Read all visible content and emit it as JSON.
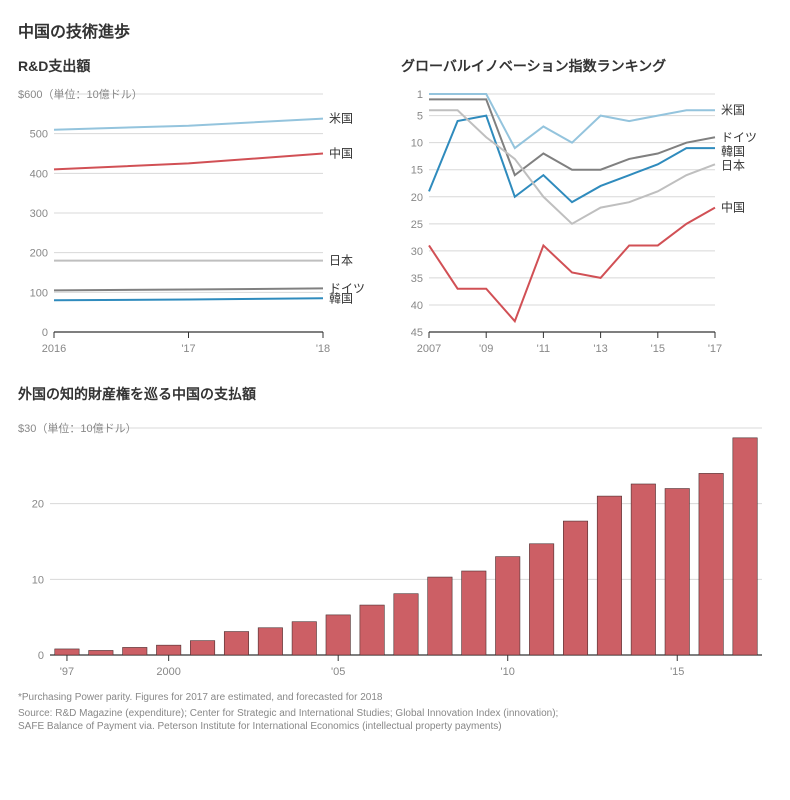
{
  "title": "中国の技術進歩",
  "footnote1": "*Purchasing Power parity. Figures for 2017 are estimated, and forecasted for 2018",
  "footnote2": "Source: R&D Magazine (expenditure); Center for Strategic and International Studies; Global Innovation Index (innovation);",
  "footnote3": "SAFE Balance of Payment  via. Peterson Institute for International Economics (intellectual property payments)",
  "colors": {
    "grid": "#d8d8d8",
    "axis_text": "#888888",
    "baseline": "#333333",
    "background": "#ffffff"
  },
  "chart1": {
    "title": "R&D支出額",
    "type": "line",
    "unit": "$600（単位：10億ドル）",
    "unit_prefix": "$",
    "years": [
      2016,
      2017,
      2018
    ],
    "x_labels": [
      "2016",
      "'17",
      "'18"
    ],
    "ylim": [
      0,
      600
    ],
    "ytick_step": 100,
    "series": [
      {
        "name": "米国",
        "label": "米国",
        "color": "#94c4dd",
        "stroke_width": 2,
        "values": [
          510,
          520,
          538
        ]
      },
      {
        "name": "中国",
        "label": "中国",
        "color": "#d15055",
        "stroke_width": 2,
        "values": [
          410,
          425,
          450
        ]
      },
      {
        "name": "日本",
        "label": "日本",
        "color": "#bfbfbf",
        "stroke_width": 2,
        "values": [
          180,
          180,
          180
        ]
      },
      {
        "name": "ドイツ",
        "label": "ドイツ",
        "color": "#808080",
        "stroke_width": 2,
        "values": [
          105,
          107,
          110
        ]
      },
      {
        "name": "韓国",
        "label": "韓国",
        "color": "#2f8bbd",
        "stroke_width": 2,
        "values": [
          80,
          82,
          85
        ]
      }
    ],
    "label_fontsize": 12,
    "tick_fontsize": 11
  },
  "chart2": {
    "title": "グローバルイノベーション指数ランキング",
    "type": "line",
    "years": [
      2007,
      2008,
      2009,
      2010,
      2011,
      2012,
      2013,
      2014,
      2015,
      2016,
      2017
    ],
    "x_ticks": [
      2007,
      2009,
      2011,
      2013,
      2015,
      2017
    ],
    "x_labels": [
      "2007",
      "'09",
      "'11",
      "'13",
      "'15",
      "'17"
    ],
    "ylim": [
      45,
      1
    ],
    "ytick_step": 5,
    "y_ticks": [
      1,
      5,
      10,
      15,
      20,
      25,
      30,
      35,
      40,
      45
    ],
    "series": [
      {
        "name": "米国",
        "label": "米国",
        "color": "#94c4dd",
        "stroke_width": 2,
        "values": [
          1,
          1,
          1,
          11,
          7,
          10,
          5,
          6,
          5,
          4,
          4
        ]
      },
      {
        "name": "ドイツ",
        "label": "ドイツ",
        "color": "#808080",
        "stroke_width": 2,
        "values": [
          2,
          2,
          2,
          16,
          12,
          15,
          15,
          13,
          12,
          10,
          9
        ]
      },
      {
        "name": "韓国",
        "label": "韓国",
        "color": "#2f8bbd",
        "stroke_width": 2,
        "values": [
          19,
          6,
          5,
          20,
          16,
          21,
          18,
          16,
          14,
          11,
          11
        ]
      },
      {
        "name": "日本",
        "label": "日本",
        "color": "#bfbfbf",
        "stroke_width": 2,
        "values": [
          4,
          4,
          9,
          13,
          20,
          25,
          22,
          21,
          19,
          16,
          14
        ]
      },
      {
        "name": "中国",
        "label": "中国",
        "color": "#d15055",
        "stroke_width": 2,
        "values": [
          29,
          37,
          37,
          43,
          29,
          34,
          35,
          29,
          29,
          25,
          22
        ]
      }
    ],
    "label_fontsize": 12,
    "tick_fontsize": 11
  },
  "chart3": {
    "title": "外国の知的財産権を巡る中国の支払額",
    "type": "bar",
    "unit": "$30（単位：10億ドル）",
    "years": [
      1997,
      1998,
      1999,
      2000,
      2001,
      2002,
      2003,
      2004,
      2005,
      2006,
      2007,
      2008,
      2009,
      2010,
      2011,
      2012,
      2013,
      2014,
      2015,
      2016,
      2017
    ],
    "x_ticks": [
      1997,
      2000,
      2005,
      2010,
      2015
    ],
    "x_labels": [
      "'97",
      "2000",
      "'05",
      "'10",
      "'15"
    ],
    "ylim": [
      0,
      30
    ],
    "ytick_step": 10,
    "values": [
      0.8,
      0.6,
      1.0,
      1.3,
      1.9,
      3.1,
      3.6,
      4.4,
      5.3,
      6.6,
      8.1,
      10.3,
      11.1,
      13.0,
      14.7,
      17.7,
      21.0,
      22.6,
      22.0,
      24.0,
      28.7
    ],
    "bar_color": "#cc5f65",
    "bar_stroke": "#4a2f30",
    "label_fontsize": 12,
    "tick_fontsize": 11
  }
}
